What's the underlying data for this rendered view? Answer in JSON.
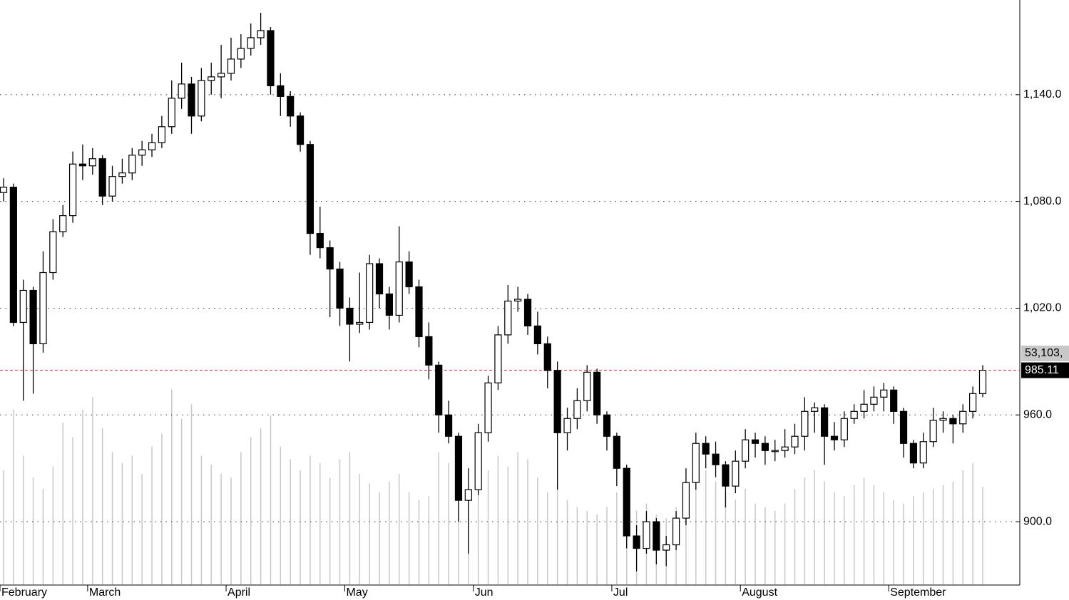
{
  "chart_data": {
    "type": "candlestick",
    "categories": [
      "February",
      null,
      null,
      null,
      null,
      null,
      null,
      null,
      null,
      "March",
      null,
      null,
      null,
      null,
      null,
      null,
      null,
      null,
      null,
      null,
      null,
      null,
      null,
      "April",
      null,
      null,
      null,
      null,
      null,
      null,
      null,
      null,
      null,
      null,
      null,
      "May",
      null,
      null,
      null,
      null,
      null,
      null,
      null,
      null,
      null,
      null,
      null,
      null,
      "Jun",
      null,
      null,
      null,
      null,
      null,
      null,
      null,
      null,
      null,
      null,
      null,
      null,
      null,
      "Jul",
      null,
      null,
      null,
      null,
      null,
      null,
      null,
      null,
      null,
      null,
      null,
      null,
      "August",
      null,
      null,
      null,
      null,
      null,
      null,
      null,
      null,
      null,
      null,
      null,
      null,
      null,
      null,
      "September",
      null,
      null,
      null,
      null,
      null,
      null,
      null,
      null,
      null
    ],
    "ohlc": [
      [
        1085,
        1093,
        1080,
        1088
      ],
      [
        1088,
        1090,
        1010,
        1012
      ],
      [
        1012,
        1036,
        968,
        1030
      ],
      [
        1030,
        1032,
        972,
        1000
      ],
      [
        1000,
        1052,
        995,
        1040
      ],
      [
        1040,
        1070,
        1036,
        1063
      ],
      [
        1063,
        1078,
        1060,
        1072
      ],
      [
        1072,
        1108,
        1068,
        1101
      ],
      [
        1101,
        1112,
        1092,
        1100
      ],
      [
        1100,
        1110,
        1095,
        1104
      ],
      [
        1104,
        1106,
        1078,
        1083
      ],
      [
        1083,
        1100,
        1080,
        1094
      ],
      [
        1094,
        1104,
        1090,
        1096
      ],
      [
        1096,
        1110,
        1092,
        1106
      ],
      [
        1106,
        1114,
        1100,
        1109
      ],
      [
        1109,
        1118,
        1105,
        1113
      ],
      [
        1113,
        1128,
        1110,
        1122
      ],
      [
        1122,
        1148,
        1118,
        1138
      ],
      [
        1138,
        1158,
        1132,
        1146
      ],
      [
        1146,
        1150,
        1118,
        1128
      ],
      [
        1128,
        1155,
        1125,
        1148
      ],
      [
        1148,
        1158,
        1140,
        1150
      ],
      [
        1150,
        1168,
        1138,
        1152
      ],
      [
        1152,
        1172,
        1148,
        1160
      ],
      [
        1160,
        1174,
        1155,
        1166
      ],
      [
        1166,
        1180,
        1162,
        1172
      ],
      [
        1172,
        1186,
        1168,
        1176
      ],
      [
        1176,
        1178,
        1140,
        1145
      ],
      [
        1145,
        1152,
        1128,
        1139
      ],
      [
        1139,
        1142,
        1122,
        1128
      ],
      [
        1128,
        1130,
        1108,
        1112
      ],
      [
        1112,
        1114,
        1050,
        1062
      ],
      [
        1062,
        1077,
        1048,
        1054
      ],
      [
        1054,
        1058,
        1015,
        1042
      ],
      [
        1042,
        1046,
        1010,
        1020
      ],
      [
        1020,
        1026,
        990,
        1011
      ],
      [
        1011,
        1040,
        1006,
        1012
      ],
      [
        1012,
        1050,
        1008,
        1045
      ],
      [
        1045,
        1048,
        1020,
        1028
      ],
      [
        1028,
        1032,
        1008,
        1016
      ],
      [
        1016,
        1066,
        1012,
        1046
      ],
      [
        1046,
        1052,
        1028,
        1032
      ],
      [
        1032,
        1036,
        998,
        1004
      ],
      [
        1004,
        1012,
        980,
        988
      ],
      [
        988,
        990,
        950,
        960
      ],
      [
        960,
        968,
        944,
        948
      ],
      [
        948,
        950,
        900,
        912
      ],
      [
        912,
        930,
        882,
        918
      ],
      [
        918,
        955,
        915,
        950
      ],
      [
        950,
        982,
        945,
        978
      ],
      [
        978,
        1010,
        974,
        1005
      ],
      [
        1005,
        1033,
        1000,
        1024
      ],
      [
        1024,
        1032,
        1018,
        1025
      ],
      [
        1025,
        1028,
        1005,
        1010
      ],
      [
        1010,
        1018,
        994,
        1000
      ],
      [
        1000,
        1004,
        975,
        985
      ],
      [
        985,
        990,
        918,
        950
      ],
      [
        950,
        964,
        940,
        958
      ],
      [
        958,
        975,
        952,
        968
      ],
      [
        968,
        988,
        962,
        984
      ],
      [
        984,
        986,
        955,
        960
      ],
      [
        960,
        962,
        940,
        948
      ],
      [
        948,
        950,
        920,
        930
      ],
      [
        930,
        932,
        885,
        892
      ],
      [
        892,
        898,
        872,
        885
      ],
      [
        885,
        906,
        882,
        900
      ],
      [
        900,
        902,
        876,
        884
      ],
      [
        884,
        892,
        875,
        887
      ],
      [
        887,
        906,
        884,
        902
      ],
      [
        902,
        930,
        898,
        922
      ],
      [
        922,
        950,
        918,
        944
      ],
      [
        944,
        948,
        930,
        938
      ],
      [
        938,
        945,
        925,
        932
      ],
      [
        932,
        934,
        908,
        920
      ],
      [
        920,
        940,
        916,
        934
      ],
      [
        934,
        952,
        930,
        946
      ],
      [
        946,
        950,
        936,
        944
      ],
      [
        944,
        948,
        932,
        940
      ],
      [
        940,
        946,
        934,
        940
      ],
      [
        940,
        952,
        936,
        942
      ],
      [
        942,
        955,
        938,
        948
      ],
      [
        948,
        970,
        940,
        962
      ],
      [
        962,
        967,
        950,
        964
      ],
      [
        964,
        966,
        932,
        948
      ],
      [
        948,
        956,
        940,
        946
      ],
      [
        946,
        962,
        942,
        958
      ],
      [
        958,
        966,
        955,
        962
      ],
      [
        962,
        974,
        958,
        966
      ],
      [
        966,
        976,
        962,
        970
      ],
      [
        970,
        978,
        962,
        974
      ],
      [
        974,
        976,
        955,
        962
      ],
      [
        962,
        964,
        936,
        944
      ],
      [
        944,
        946,
        930,
        933
      ],
      [
        933,
        950,
        930,
        945
      ],
      [
        945,
        964,
        942,
        957
      ],
      [
        957,
        962,
        950,
        958
      ],
      [
        958,
        960,
        944,
        955
      ],
      [
        955,
        966,
        950,
        962
      ],
      [
        962,
        976,
        958,
        972
      ],
      [
        972,
        988,
        970,
        985.11
      ]
    ],
    "volume": [
      62000,
      95000,
      70000,
      58000,
      52000,
      64000,
      88000,
      80000,
      95000,
      102000,
      85000,
      72000,
      66000,
      70000,
      60000,
      75000,
      82000,
      106000,
      90000,
      98000,
      70000,
      65000,
      60000,
      58000,
      72000,
      80000,
      85000,
      92000,
      75000,
      68000,
      62000,
      70000,
      66000,
      58000,
      68000,
      72000,
      60000,
      55000,
      50000,
      56000,
      60000,
      50000,
      46000,
      48000,
      72000,
      66000,
      60000,
      50000,
      56000,
      62000,
      70000,
      64000,
      72000,
      68000,
      58000,
      50000,
      54000,
      46000,
      42000,
      40000,
      38000,
      42000,
      50000,
      45000,
      40000,
      44000,
      38000,
      36000,
      42000,
      50000,
      58000,
      62000,
      56000,
      50000,
      46000,
      52000,
      44000,
      42000,
      40000,
      44000,
      52000,
      58000,
      62000,
      56000,
      50000,
      48000,
      54000,
      58000,
      54000,
      50000,
      46000,
      44000,
      48000,
      50000,
      52000,
      54000,
      56000,
      62000,
      66000,
      53103
    ],
    "volume_label": "53,103,",
    "last_label": "985.11",
    "ylim": [
      864.8,
      1193.2
    ],
    "vlim": [
      0,
      317800
    ],
    "yticks": [
      {
        "value": 900,
        "label": "900.0"
      },
      {
        "value": 960,
        "label": "960.0"
      },
      {
        "value": 1020,
        "label": "1,020.0"
      },
      {
        "value": 1080,
        "label": "1,080.0"
      },
      {
        "value": 1140,
        "label": "1,140.0"
      }
    ],
    "grid": true,
    "up_color": "#ffffff",
    "down_color": "#000000",
    "volume_color": "#c8c8c8",
    "last_line_color": "#e02020"
  }
}
